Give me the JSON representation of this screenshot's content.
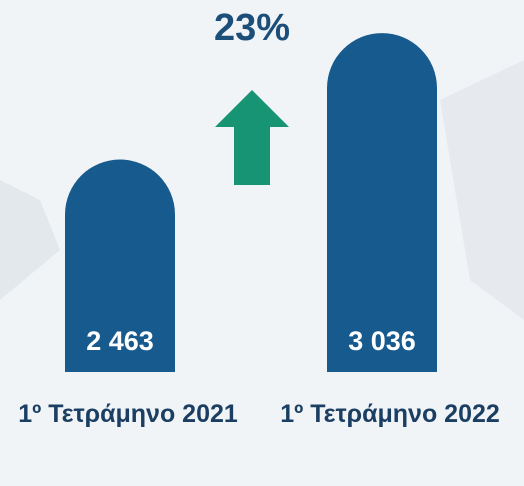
{
  "chart_data": {
    "type": "bar",
    "annotation": "23%",
    "categories": [
      "1º Τετράμηνο 2021",
      "1º Τετράμηνο 2022"
    ],
    "values": [
      2463,
      3036
    ],
    "value_labels": [
      "2 463",
      "3 036"
    ],
    "color": "#175a8e",
    "ylim": [
      1500,
      3050
    ]
  }
}
